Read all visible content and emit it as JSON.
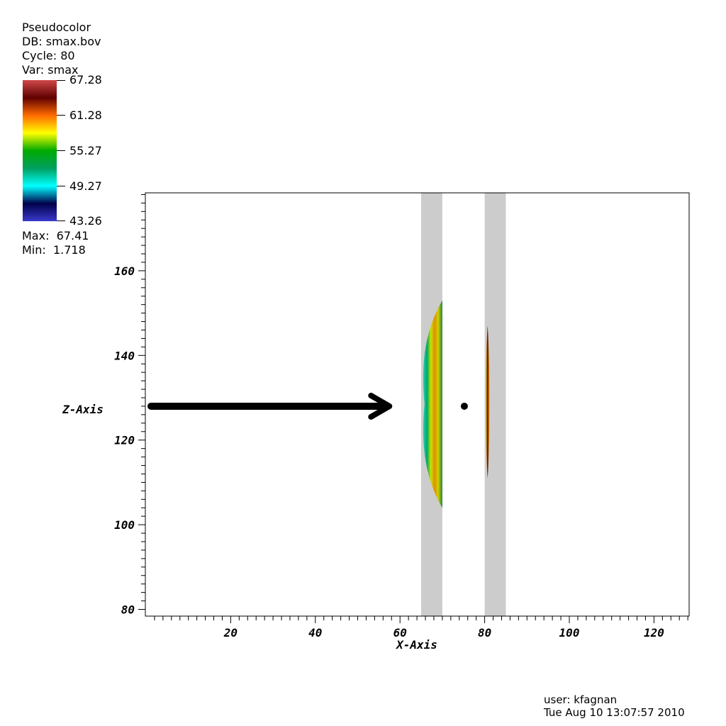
{
  "legend": {
    "plot_type": "Pseudocolor",
    "db": "DB: smax.bov",
    "cycle": "Cycle: 80",
    "var": "Var: smax",
    "colorbar_labels": [
      "67.28",
      "61.28",
      "55.27",
      "49.27",
      "43.26"
    ],
    "max": "Max:  67.41",
    "min": "Min:  1.718"
  },
  "footer": {
    "user": "user: kfagnan",
    "timestamp": "Tue Aug 10 13:07:57 2010"
  },
  "chart_data": {
    "type": "heatmap",
    "xlabel": "X-Axis",
    "ylabel": "Z-Axis",
    "xlim": [
      0,
      129
    ],
    "ylim": [
      78,
      178
    ],
    "x_ticks": [
      20,
      40,
      60,
      80,
      100,
      120
    ],
    "y_ticks": [
      80,
      100,
      120,
      140,
      160
    ],
    "color_range": [
      43.26,
      67.28
    ],
    "colormap": [
      "#3a3acc",
      "#00004a",
      "#00ffff",
      "#00a060",
      "#00aa00",
      "#ffff00",
      "#ff6a00",
      "#600000",
      "#d04848"
    ],
    "gray_bands": [
      {
        "x_start": 65,
        "x_end": 70
      },
      {
        "x_start": 80,
        "x_end": 85
      }
    ],
    "pulse_1": {
      "x_start": 65.8,
      "x_end": 70,
      "z_start": 104,
      "z_end": 153
    },
    "pulse_2": {
      "x_start": 80.3,
      "x_end": 81.1,
      "z_start": 111,
      "z_end": 147
    },
    "arrow": {
      "x_start": 0.5,
      "x_end": 57.5,
      "z": 128
    },
    "dot": {
      "x": 75.2,
      "z": 128
    },
    "grid": false
  }
}
